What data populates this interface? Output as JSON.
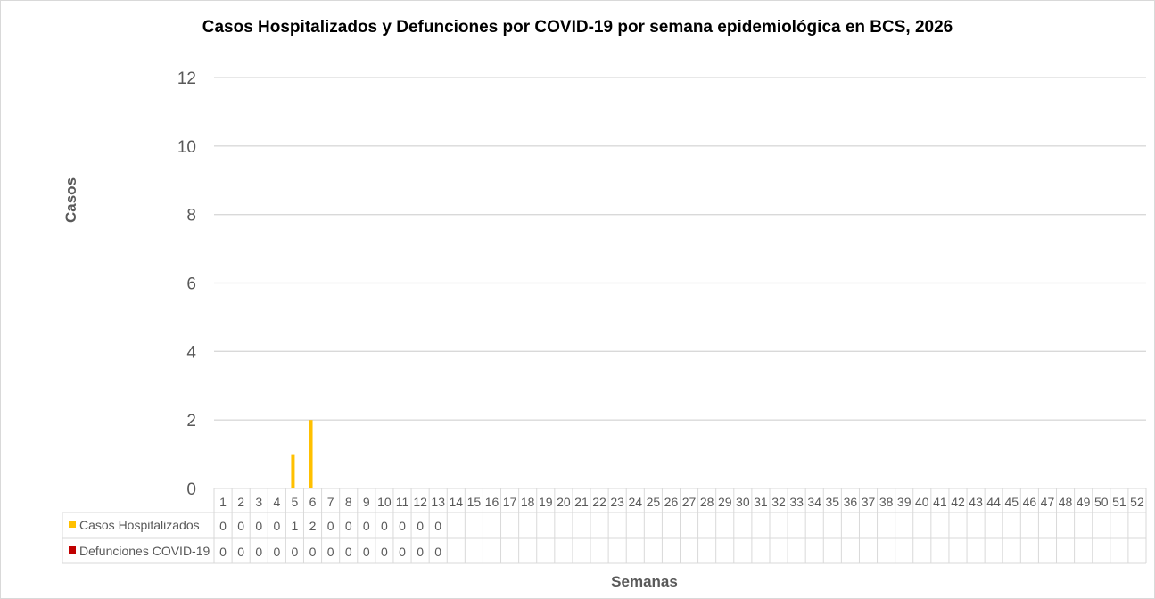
{
  "chart_data": {
    "type": "bar",
    "title": "Casos Hospitalizados y Defunciones por COVID-19 por semana epidemiológica en BCS, 2026",
    "xlabel": "Semanas",
    "ylabel": "Casos",
    "ylim": [
      0,
      12
    ],
    "yticks": [
      0,
      2,
      4,
      6,
      8,
      10,
      12
    ],
    "grid": true,
    "legend_placement": "data-table-left",
    "categories": [
      "1",
      "2",
      "3",
      "4",
      "5",
      "6",
      "7",
      "8",
      "9",
      "10",
      "11",
      "12",
      "13",
      "14",
      "15",
      "16",
      "17",
      "18",
      "19",
      "20",
      "21",
      "22",
      "23",
      "24",
      "25",
      "26",
      "27",
      "28",
      "29",
      "30",
      "31",
      "32",
      "33",
      "34",
      "35",
      "36",
      "37",
      "38",
      "39",
      "40",
      "41",
      "42",
      "43",
      "44",
      "45",
      "46",
      "47",
      "48",
      "49",
      "50",
      "51",
      "52"
    ],
    "series": [
      {
        "name": "Casos Hospitalizados",
        "color": "#FFC000",
        "values": [
          0,
          0,
          0,
          0,
          1,
          2,
          0,
          0,
          0,
          0,
          0,
          0,
          0,
          null,
          null,
          null,
          null,
          null,
          null,
          null,
          null,
          null,
          null,
          null,
          null,
          null,
          null,
          null,
          null,
          null,
          null,
          null,
          null,
          null,
          null,
          null,
          null,
          null,
          null,
          null,
          null,
          null,
          null,
          null,
          null,
          null,
          null,
          null,
          null,
          null,
          null,
          null
        ]
      },
      {
        "name": "Defunciones COVID-19",
        "color": "#C00000",
        "values": [
          0,
          0,
          0,
          0,
          0,
          0,
          0,
          0,
          0,
          0,
          0,
          0,
          0,
          null,
          null,
          null,
          null,
          null,
          null,
          null,
          null,
          null,
          null,
          null,
          null,
          null,
          null,
          null,
          null,
          null,
          null,
          null,
          null,
          null,
          null,
          null,
          null,
          null,
          null,
          null,
          null,
          null,
          null,
          null,
          null,
          null,
          null,
          null,
          null,
          null,
          null,
          null
        ]
      }
    ]
  }
}
